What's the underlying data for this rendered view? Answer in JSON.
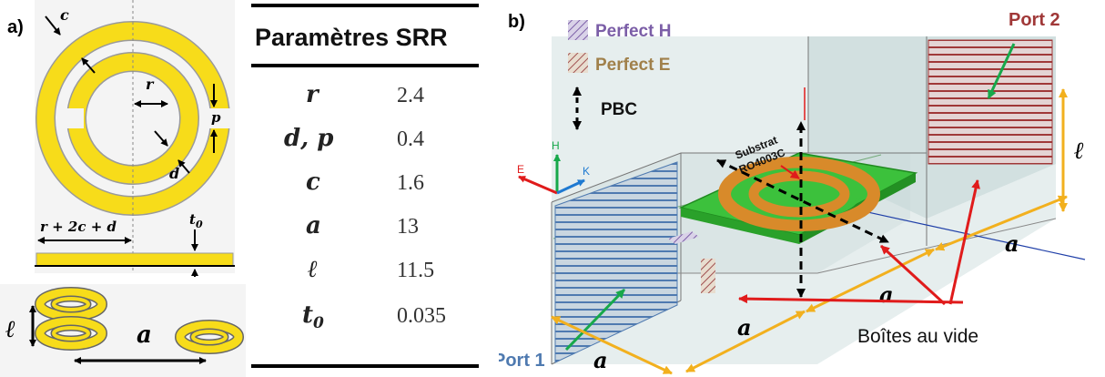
{
  "panel_a": {
    "letter": "a)",
    "labels": {
      "c": "c",
      "r": "r",
      "p": "p",
      "d": "d",
      "width_expr": "r + 2c + d",
      "t0": "t",
      "t0_sub": "0",
      "ell": "ℓ",
      "a": "a"
    },
    "colors": {
      "ring": "#f7dc1a",
      "outline": "#9a9a9a",
      "arrow": "#000000"
    }
  },
  "table": {
    "header": "Paramètres SRR",
    "rows": [
      {
        "sym": "r",
        "sub": "",
        "val": "2.4"
      },
      {
        "sym": "d, p",
        "sub": "",
        "val": "0.4"
      },
      {
        "sym": "c",
        "sub": "",
        "val": "1.6"
      },
      {
        "sym": "a",
        "sub": "",
        "val": "13"
      },
      {
        "sym": "ℓ",
        "sub": "",
        "val": "11.5"
      },
      {
        "sym": "t",
        "sub": "0",
        "val": "0.035"
      }
    ]
  },
  "panel_b": {
    "letter": "b)",
    "legend": {
      "perfect_h": "Perfect H",
      "perfect_e": "Perfect E",
      "pbc": "PBC"
    },
    "port1": "Port 1",
    "port2": "Port 2",
    "substrat_line1": "Substrat",
    "substrat_line2": "RO4003C",
    "axes": {
      "h": "H",
      "e": "E",
      "k": "K"
    },
    "dim_a": "a",
    "dim_ell": "ℓ",
    "vacuum_boxes": "Boîtes au vide",
    "colors": {
      "perfect_h": "#7b5ea7",
      "perfect_e": "#a0804a",
      "port1": "#4f7ab0",
      "port2": "#a03838",
      "substrate": "#3cc13c",
      "ring": "#d88a2a",
      "dimension": "#f2b01e",
      "pointer_red": "#e01b1b",
      "pointer_green": "#17a84a"
    }
  }
}
